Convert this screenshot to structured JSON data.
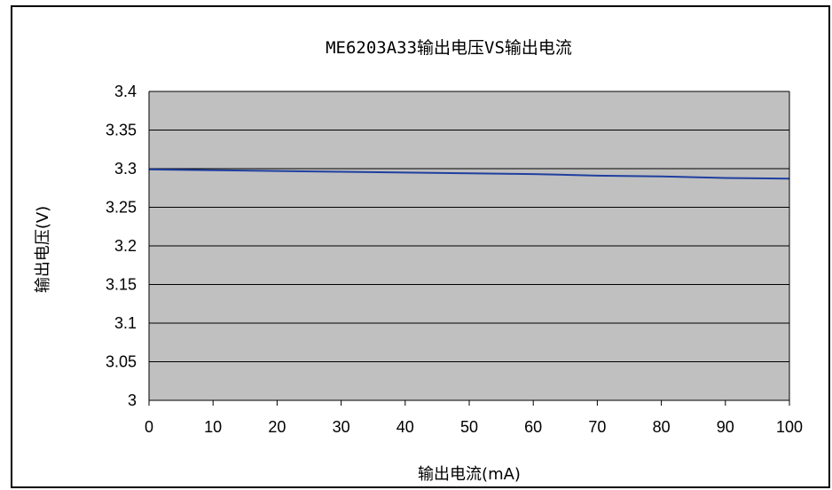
{
  "chart_data": {
    "type": "line",
    "title": "ME6203A33输出电压VS输出电流",
    "xlabel": "输出电流(mA)",
    "ylabel": "输出电压(V)",
    "xlim": [
      0,
      100
    ],
    "ylim": [
      3,
      3.4
    ],
    "x_ticks": [
      "0",
      "10",
      "20",
      "30",
      "40",
      "50",
      "60",
      "70",
      "80",
      "90",
      "100"
    ],
    "y_ticks": [
      "3",
      "3.05",
      "3.1",
      "3.15",
      "3.2",
      "3.25",
      "3.3",
      "3.35",
      "3.4"
    ],
    "grid": true,
    "legend": "none",
    "colors": {
      "plot_background": "#c0c0c0",
      "line": "#1f3f9f",
      "gridline": "#000000"
    },
    "series": [
      {
        "x": [
          0,
          10,
          20,
          30,
          40,
          50,
          60,
          70,
          80,
          90,
          100
        ],
        "y": [
          3.299,
          3.298,
          3.297,
          3.296,
          3.295,
          3.294,
          3.293,
          3.291,
          3.29,
          3.288,
          3.287
        ]
      }
    ]
  }
}
